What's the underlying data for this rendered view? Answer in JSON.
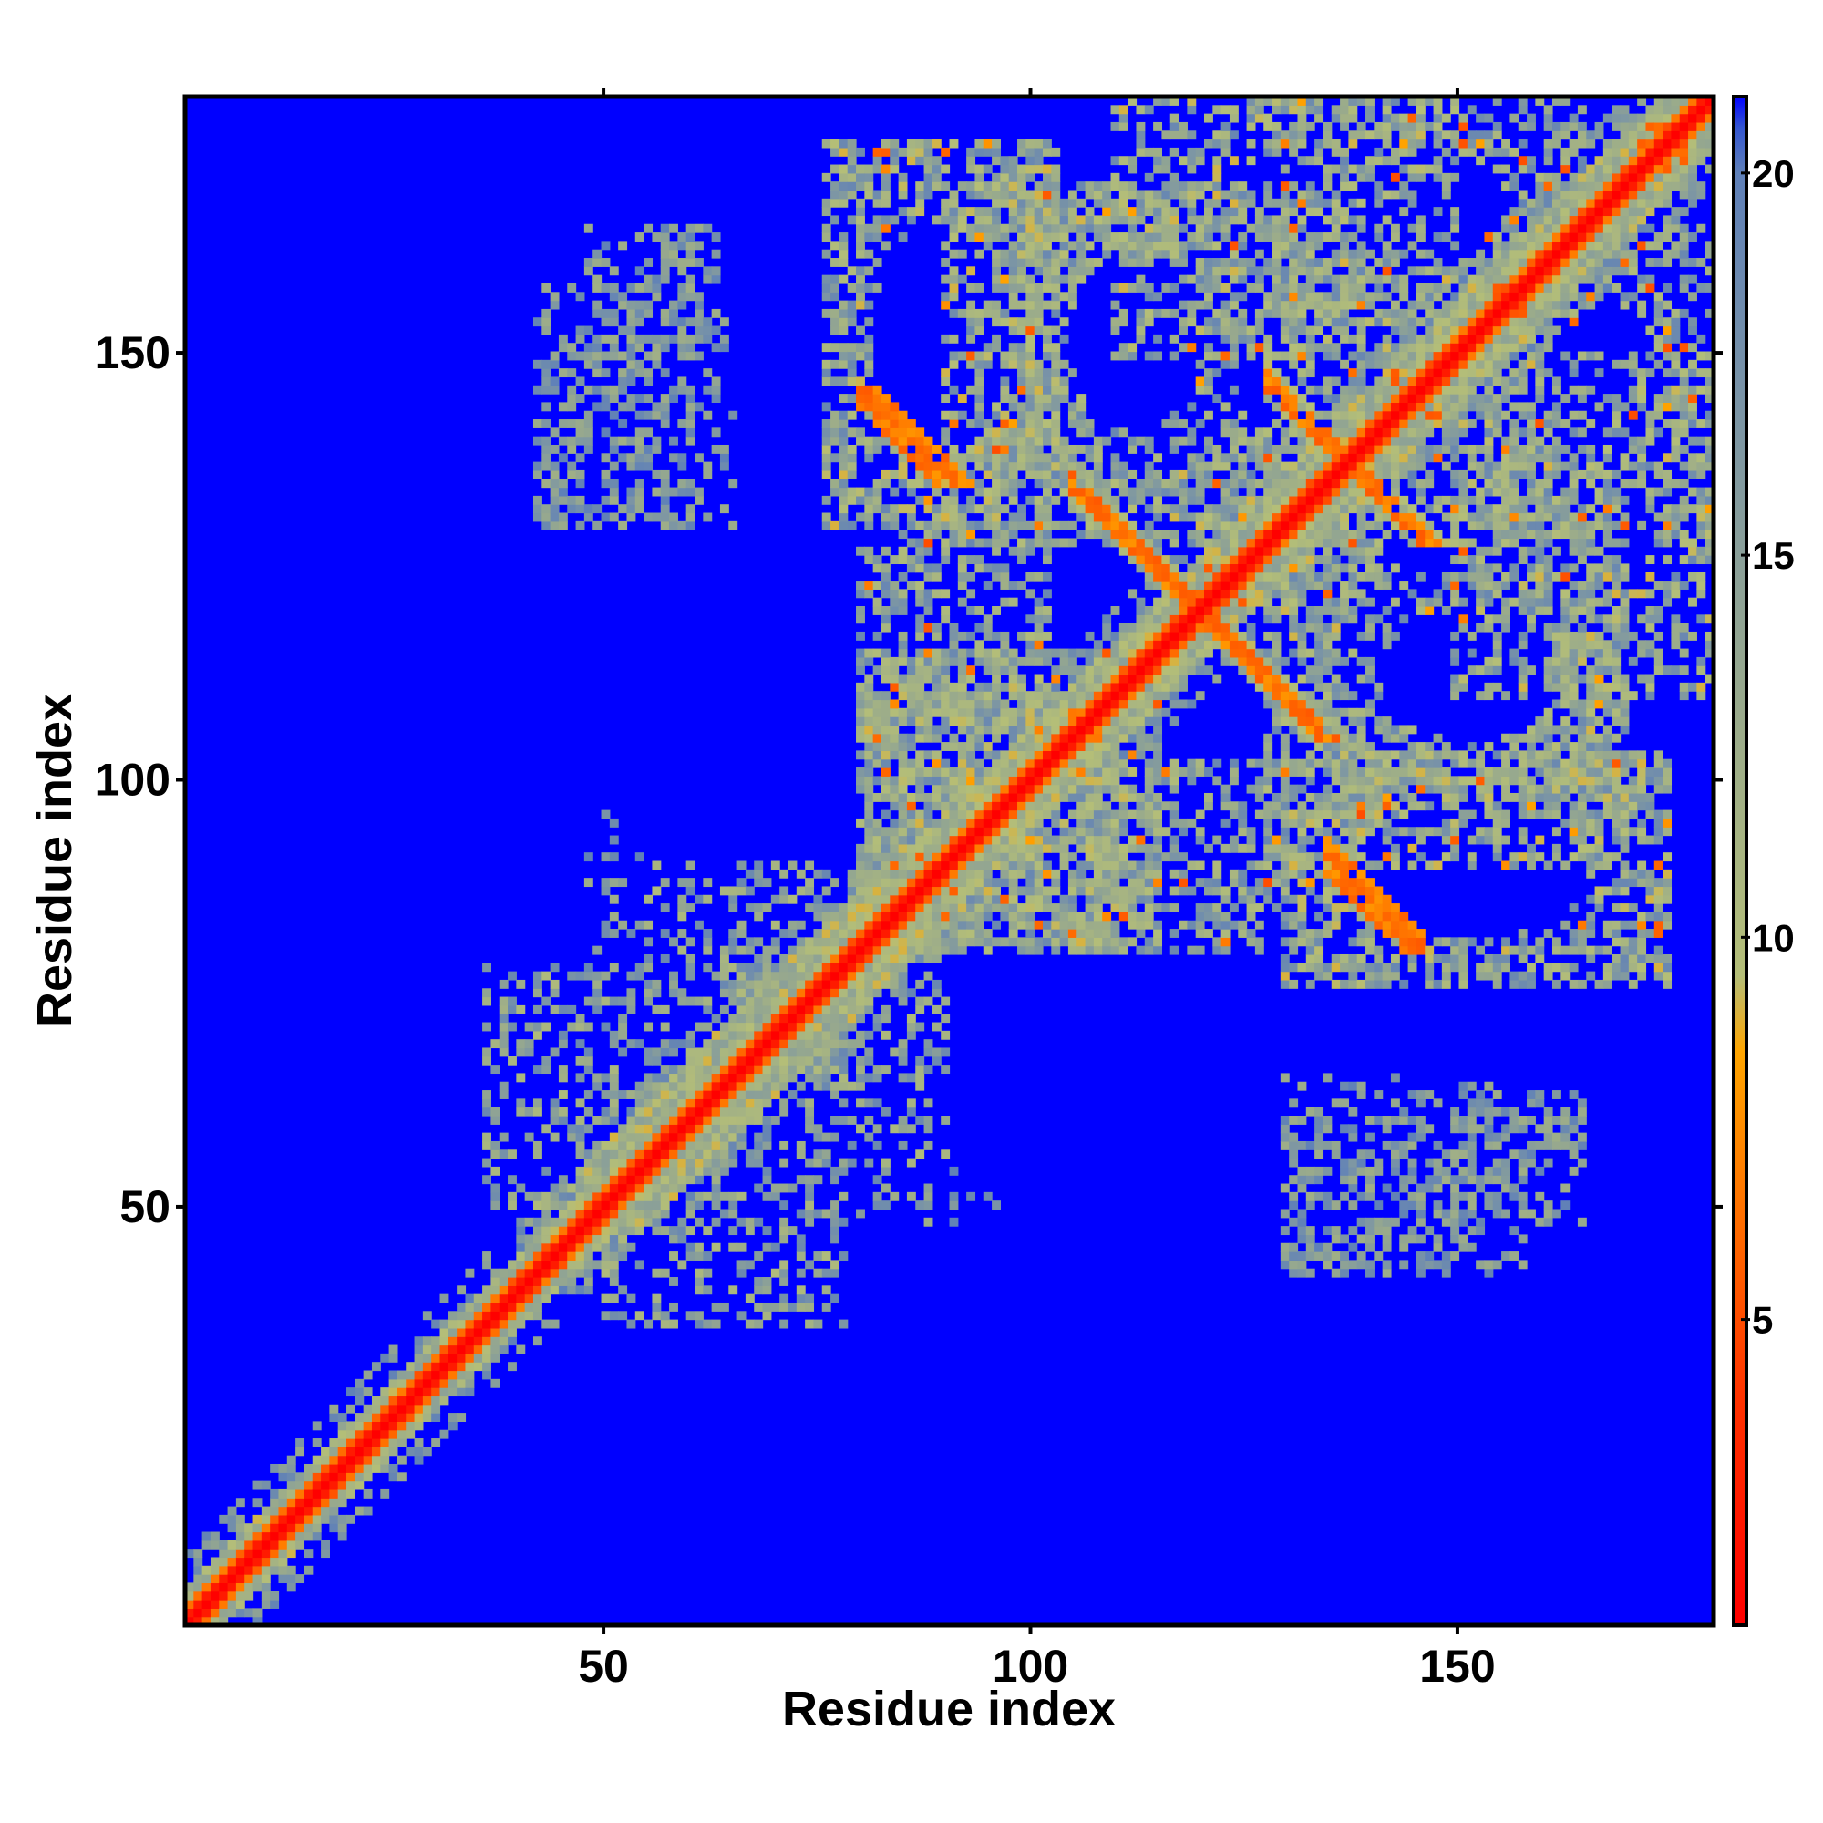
{
  "chart_data": {
    "type": "heatmap",
    "title": "",
    "xlabel": "Residue index",
    "ylabel": "Residue index",
    "xlim": [
      1,
      180
    ],
    "ylim": [
      1,
      180
    ],
    "x_ticks": [
      50,
      100,
      150
    ],
    "y_ticks": [
      50,
      100,
      150
    ],
    "x_tick_labels": [
      "50",
      "100",
      "150"
    ],
    "y_tick_labels": [
      "50",
      "100",
      "150"
    ],
    "n_residues": 180,
    "value_range": [
      1,
      21
    ],
    "colorbar": {
      "ticks": [
        5,
        10,
        15,
        20
      ],
      "tick_labels": [
        "5",
        "10",
        "15",
        "20"
      ],
      "stops": [
        {
          "value": 1,
          "color": "#ff0000"
        },
        {
          "value": 4,
          "color": "#ff3300"
        },
        {
          "value": 6,
          "color": "#ff6600"
        },
        {
          "value": 8.5,
          "color": "#ffa500"
        },
        {
          "value": 9.5,
          "color": "#b4be78"
        },
        {
          "value": 13,
          "color": "#99aa8c"
        },
        {
          "value": 17,
          "color": "#7a94a6"
        },
        {
          "value": 20,
          "color": "#5f80b8"
        },
        {
          "value": 20.6,
          "color": "#3355d0"
        },
        {
          "value": 21,
          "color": "#0000ff"
        }
      ]
    },
    "background_color": "#0000ff",
    "diagonal_color": "#ff0000",
    "contact_regions": [
      {
        "x": [
          1,
          47
        ],
        "y": [
          1,
          47
        ],
        "kind": "diagonal-band",
        "width": 4
      },
      {
        "x": [
          40,
          85
        ],
        "y": [
          40,
          85
        ],
        "kind": "diagonal-band",
        "width": 8
      },
      {
        "x": [
          85,
          180
        ],
        "y": [
          85,
          180
        ],
        "kind": "diagonal-band",
        "width": 6
      },
      {
        "x": [
          81,
          110
        ],
        "y": [
          81,
          110
        ],
        "kind": "helix-bundle"
      },
      {
        "x": [
          105,
          120
        ],
        "y": [
          120,
          135
        ],
        "kind": "antiparallel-strip"
      },
      {
        "x": [
          120,
          135
        ],
        "y": [
          105,
          120
        ],
        "kind": "antiparallel-strip"
      },
      {
        "x": [
          120,
          135
        ],
        "y": [
          135,
          150
        ],
        "kind": "antiparallel-strip"
      },
      {
        "x": [
          135,
          150
        ],
        "y": [
          120,
          135
        ],
        "kind": "antiparallel-strip"
      },
      {
        "x": [
          80,
          100
        ],
        "y": [
          135,
          172
        ],
        "kind": "patch"
      },
      {
        "x": [
          135,
          172
        ],
        "y": [
          80,
          100
        ],
        "kind": "patch"
      },
      {
        "x": [
          125,
          180
        ],
        "y": [
          95,
          140
        ],
        "kind": "patch"
      },
      {
        "x": [
          95,
          140
        ],
        "y": [
          125,
          180
        ],
        "kind": "patch"
      },
      {
        "x": [
          40,
          60
        ],
        "y": [
          130,
          160
        ],
        "kind": "sparse"
      },
      {
        "x": [
          130,
          160
        ],
        "y": [
          40,
          60
        ],
        "kind": "sparse"
      }
    ]
  }
}
